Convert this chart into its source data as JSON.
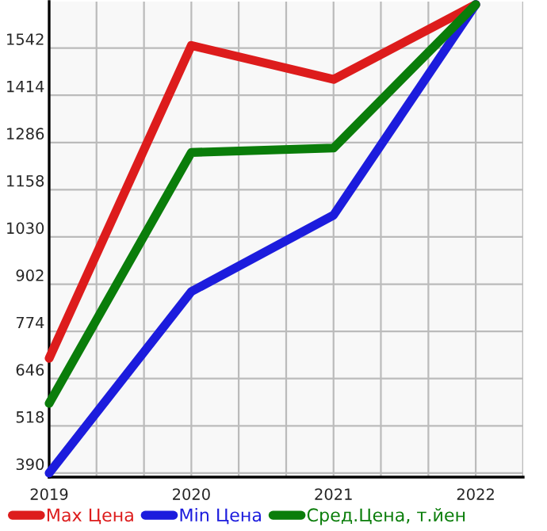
{
  "chart_data": {
    "type": "line",
    "x": [
      2019,
      2020,
      2021,
      2022
    ],
    "series": [
      {
        "name": "Max Цена",
        "color": "#dd1c1c",
        "values": [
          701,
          1549,
          1457,
          1660
        ]
      },
      {
        "name": "Min Цена",
        "color": "#1c1cdd",
        "values": [
          390,
          882,
          1089,
          1660
        ]
      },
      {
        "name": "Сред.Цена, т.йен",
        "color": "#0a7d0a",
        "values": [
          579,
          1259,
          1271,
          1660
        ]
      }
    ],
    "xlim": [
      2019,
      2022.334
    ],
    "xticks": [
      2019,
      {
        "value": 2019.333,
        "label": null
      },
      {
        "value": 2019.667,
        "label": null
      },
      2020,
      {
        "value": 2020.333,
        "label": null
      },
      {
        "value": 2020.667,
        "label": null
      },
      2021,
      {
        "value": 2021.333,
        "label": null
      },
      {
        "value": 2021.667,
        "label": null
      },
      2022,
      {
        "value": 2022.333,
        "label": null
      }
    ],
    "ylim": [
      379,
      1668
    ],
    "yticks": [
      390,
      518,
      646,
      774,
      902,
      1030,
      1158,
      1286,
      1414,
      1542
    ],
    "grid": true,
    "legend": "bottom",
    "marker": "none",
    "line_style": "solid"
  }
}
